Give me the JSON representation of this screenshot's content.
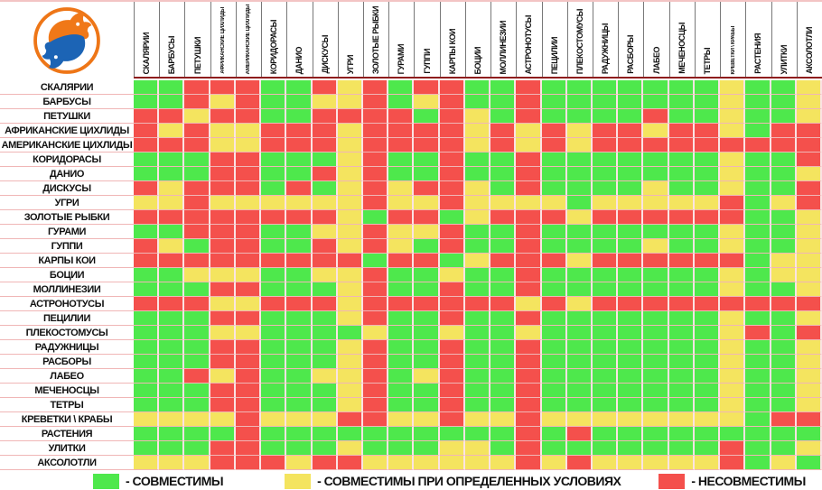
{
  "logo": {
    "ring_color": "#ee7617",
    "fish_top_color": "#f07818",
    "fish_bottom_color": "#1c64b5"
  },
  "chart_data": {
    "type": "heatmap",
    "title": "",
    "categories": [
      "СКАЛЯРИИ",
      "БАРБУСЫ",
      "ПЕТУШКИ",
      "АФРИКАНСКИЕ ЦИХЛИДЫ",
      "АМЕРИКАНСКИЕ ЦИХЛИДЫ",
      "КОРИДОРАСЫ",
      "ДАНИО",
      "ДИСКУСЫ",
      "УГРИ",
      "ЗОЛОТЫЕ РЫБКИ",
      "ГУРАМИ",
      "ГУППИ",
      "КАРПЫ КОИ",
      "БОЦИИ",
      "МОЛЛИНЕЗИИ",
      "АСТРОНОТУСЫ",
      "ПЕЦИЛИИ",
      "ПЛЕКОСТОМУСЫ",
      "РАДУЖНИЦЫ",
      "РАСБОРЫ",
      "ЛАБЕО",
      "МЕЧЕНОСЦЫ",
      "ТЕТРЫ",
      "КРЕВЕТКИ \\ КРАБЫ",
      "РАСТЕНИЯ",
      "УЛИТКИ",
      "АКСОЛОТЛИ"
    ],
    "cell_colors": {
      "G": "#4ee84c",
      "Y": "#f4e45f",
      "R": "#f4504c"
    },
    "matrix": [
      "GGRRRGGRYRGRRGGRGGGGGGGYGGY",
      "GGRYRGGYYRGYRGGRGGGGGGGYGGY",
      "RRYRRGGRRRRGRYGRGGGGRGGYGGY",
      "RYRYYRRRYRRRRYRYRYRRYRRYGRR",
      "RRRYYRRRYRRRRYRYRYRRRRRRRRR",
      "GGGRRGGGYRGGRGGRGGGGGGGYGGR",
      "GGGRRGGRYRGGRGGRGGGGGGGYGGY",
      "RYRRRGRGYRYRRYGRGGGGYGGYGGR",
      "YYRYYYYYYRYYRYYYYGYYYYYRGYR",
      "RRRRRRRRYGRRGYRRRYRRRRRRGGY",
      "GGRRRGGYYRYYRGGRGGGGGGGYGGY",
      "RYGRRGGRYRYGRGGRGGGGYGGYGGY",
      "RRRRRRRRRGRRGYRRRYRRRRRRGYY",
      "GGYYYGGYYRGGYGGRGGGGGGGYGYY",
      "GGGRRGGGYRGGRGGRGGGGGGGYGGY",
      "RRRYYRRRYRRRRRRYRYRRRRRRRRR",
      "GGGRRGGGYRGGRGGRGGGGGGGYGGY",
      "GGGYYGGGGYGGYGGYGGGGGGGYRGR",
      "GGGRRGGGYRGGRGGRGGGGGGGYGGY",
      "GGGRRGGGYRGGRGGRGGGGGGGYGGY",
      "GGRYRGGYYRGYRGGRGGGGGGGYGGY",
      "GGGRRGGGYRGGRGGRGGGGGGGYGGY",
      "GGGRRGGGYRGGRGGRGGGGGGGYGGY",
      "YYYYRYYYRRYYRYYRYYYYYYYYGRR",
      "GGGGRGGGGGGGGGGRGRGGGGGGGGG",
      "GGGRRGGGYGGGYYGRGGGGGGGRGGY",
      "YYYRRRYRRYYYYYYRYRYYYYYRGYG"
    ],
    "legend": [
      {
        "code": "G",
        "color": "#4ee84c",
        "label": "- СОВМЕСТИМЫ"
      },
      {
        "code": "Y",
        "color": "#f4e45f",
        "label": "- СОВМЕСТИМЫ ПРИ ОПРЕДЕЛЕННЫХ УСЛОВИЯХ"
      },
      {
        "code": "R",
        "color": "#f4504c",
        "label": "- НЕСОВМЕСТИМЫ"
      }
    ],
    "legend_position": "bottom",
    "grid": true
  }
}
